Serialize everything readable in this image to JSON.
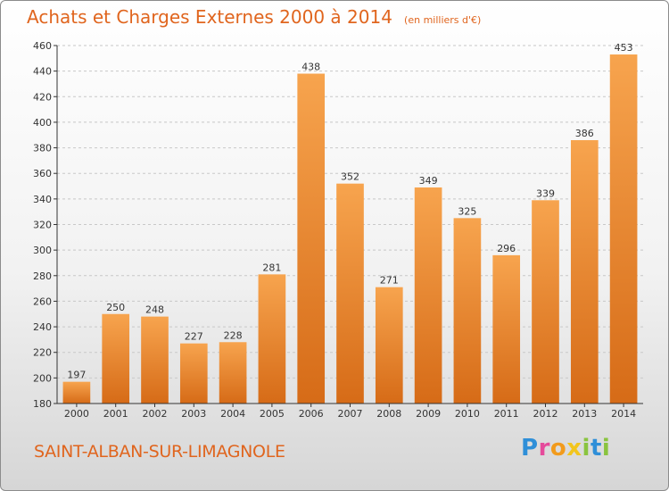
{
  "header": {
    "title": "Achats et Charges Externes 2000 à 2014",
    "subtitle": "(en milliers d'€)"
  },
  "footer": {
    "commune": "SAINT-ALBAN-SUR-LIMAGNOLE",
    "logo": {
      "text": "Proxiti",
      "letters": [
        "P",
        "r",
        "o",
        "x",
        "i",
        "t",
        "i"
      ],
      "colors": [
        "#2f8fd8",
        "#e54b9b",
        "#f29b1c",
        "#f2c51c",
        "#8ac43f",
        "#2f8fd8",
        "#8ac43f"
      ]
    }
  },
  "colors": {
    "title": "#e0651e",
    "bar_top": "#f7a44e",
    "bar_bottom": "#d66b17",
    "grid": "#c8c8c8",
    "axis": "#333333"
  },
  "chart_data": {
    "type": "bar",
    "title": "Achats et Charges Externes 2000 à 2014",
    "subtitle": "(en milliers d'€)",
    "categories": [
      "2000",
      "2001",
      "2002",
      "2003",
      "2004",
      "2005",
      "2006",
      "2007",
      "2008",
      "2009",
      "2010",
      "2011",
      "2012",
      "2013",
      "2014"
    ],
    "values": [
      197,
      250,
      248,
      227,
      228,
      281,
      438,
      352,
      271,
      349,
      325,
      296,
      339,
      386,
      453
    ],
    "ylim": [
      180,
      460
    ],
    "yticks": [
      180,
      200,
      220,
      240,
      260,
      280,
      300,
      320,
      340,
      360,
      380,
      400,
      420,
      440,
      460
    ],
    "grid": "horizontal dashed",
    "data_labels": true
  }
}
